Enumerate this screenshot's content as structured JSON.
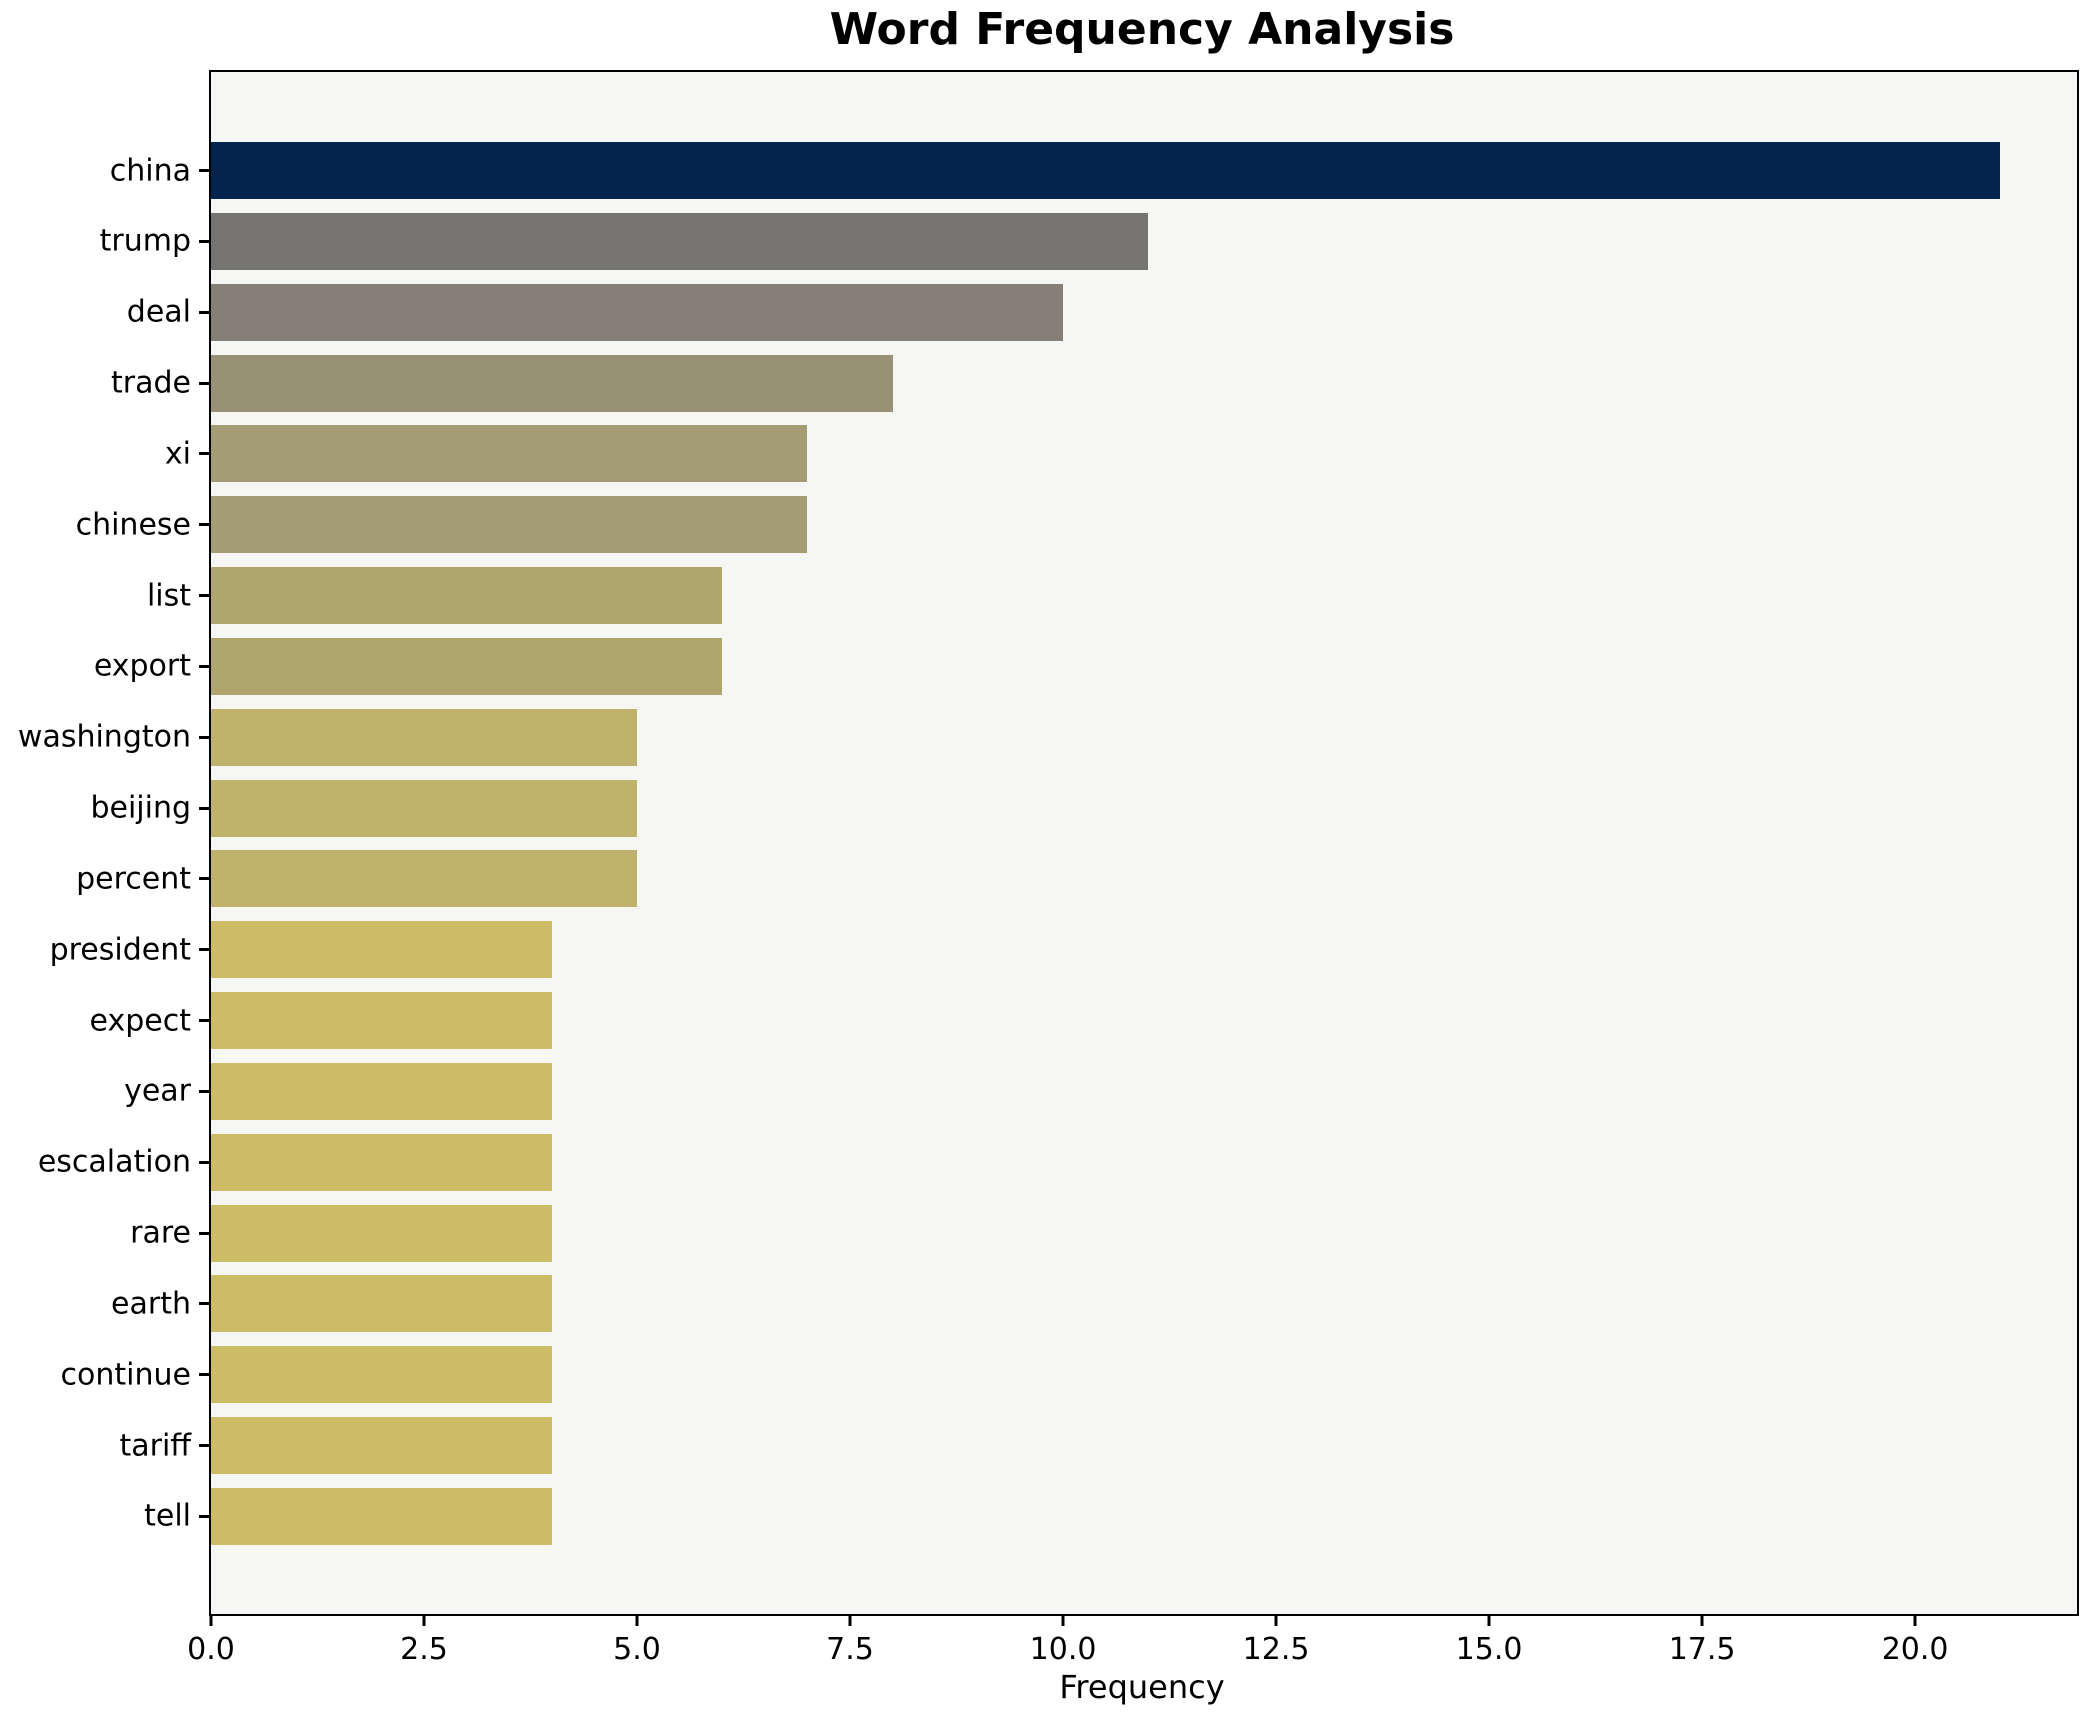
{
  "chart_data": {
    "type": "bar",
    "orientation": "horizontal",
    "title": "Word Frequency Analysis",
    "xlabel": "Frequency",
    "ylabel": "",
    "categories": [
      "china",
      "trump",
      "deal",
      "trade",
      "xi",
      "chinese",
      "list",
      "export",
      "washington",
      "beijing",
      "percent",
      "president",
      "expect",
      "year",
      "escalation",
      "rare",
      "earth",
      "continue",
      "tariff",
      "tell"
    ],
    "values": [
      21,
      11,
      10,
      8,
      7,
      7,
      6,
      6,
      5,
      5,
      5,
      4,
      4,
      4,
      4,
      4,
      4,
      4,
      4,
      4
    ],
    "bar_colors": [
      "#04234d",
      "#767472",
      "#858076",
      "#999176",
      "#a49c75",
      "#a49c75",
      "#aea56f",
      "#aea56f",
      "#bfb26b",
      "#bfb26b",
      "#bfb26b",
      "#ccbc66",
      "#ccbc66",
      "#ccbc66",
      "#ccbc66",
      "#ccbc66",
      "#ccbc66",
      "#ccbc66",
      "#ccbc66",
      "#ccbc66"
    ],
    "xlim": [
      0,
      21.9
    ],
    "x_ticks": [
      0,
      2.5,
      5,
      7.5,
      10,
      12.5,
      15,
      17.5,
      20
    ],
    "x_tick_labels": [
      "0.0",
      "2.5",
      "5.0",
      "7.5",
      "10.0",
      "12.5",
      "15.0",
      "17.5",
      "20.0"
    ],
    "grid": false,
    "legend": null,
    "colors": {
      "plot_background": "#f6f6f4",
      "page_background": "#ffffff",
      "spine": "#000000",
      "text": "#000000"
    }
  }
}
